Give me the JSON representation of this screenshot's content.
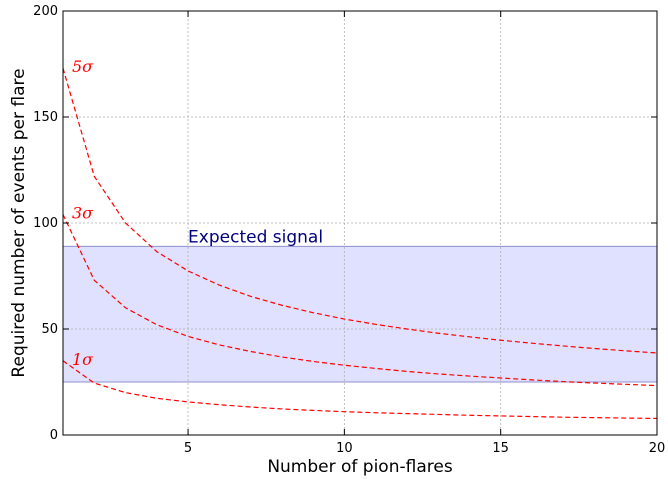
{
  "chart_data": {
    "type": "line",
    "xlabel": "Number of pion-flares",
    "ylabel": "Required number of events per flare",
    "xlim": [
      1,
      20
    ],
    "ylim": [
      0,
      200
    ],
    "x_ticks": [
      5,
      10,
      15,
      20
    ],
    "y_ticks": [
      0,
      50,
      100,
      150,
      200
    ],
    "x_tick_labels": [
      "5",
      "10",
      "15",
      "20"
    ],
    "y_tick_labels": [
      "0",
      "50",
      "100",
      "150",
      "200"
    ],
    "grid": true,
    "line_color": "#ff0000",
    "line_style": "dashed",
    "band": {
      "label": "Expected signal",
      "y_low": 25,
      "y_high": 89,
      "fill_color": "#e0e0ff",
      "edge_color": "#9090cc",
      "label_color": "#000080"
    },
    "series": [
      {
        "name": "1σ",
        "x": [
          1,
          2,
          3,
          4,
          5,
          6,
          7,
          8,
          9,
          10,
          11,
          12,
          13,
          14,
          15,
          16,
          17,
          18,
          19,
          20
        ],
        "values": [
          35,
          24.5,
          20,
          17.3,
          15.6,
          14.3,
          13.2,
          12.3,
          11.6,
          11.0,
          10.5,
          10.1,
          9.7,
          9.3,
          9.0,
          8.7,
          8.4,
          8.2,
          8.0,
          7.8
        ]
      },
      {
        "name": "3σ",
        "x": [
          1,
          2,
          3,
          4,
          5,
          6,
          7,
          8,
          9,
          10,
          11,
          12,
          13,
          14,
          15,
          16,
          17,
          18,
          19,
          20
        ],
        "values": [
          104,
          73,
          60,
          52,
          46.5,
          42.5,
          39.4,
          36.8,
          34.7,
          32.9,
          31.4,
          30.0,
          28.8,
          27.8,
          26.9,
          26.0,
          25.2,
          24.5,
          23.9,
          23.3
        ]
      },
      {
        "name": "5σ",
        "x": [
          1,
          2,
          3,
          4,
          5,
          6,
          7,
          8,
          9,
          10,
          11,
          12,
          13,
          14,
          15,
          16,
          17,
          18,
          19,
          20
        ],
        "values": [
          173,
          122,
          100,
          86.5,
          77.4,
          70.7,
          65.4,
          61.2,
          57.7,
          54.7,
          52.2,
          50.0,
          48.0,
          46.3,
          44.7,
          43.3,
          42.0,
          40.8,
          39.7,
          38.7
        ]
      }
    ]
  }
}
